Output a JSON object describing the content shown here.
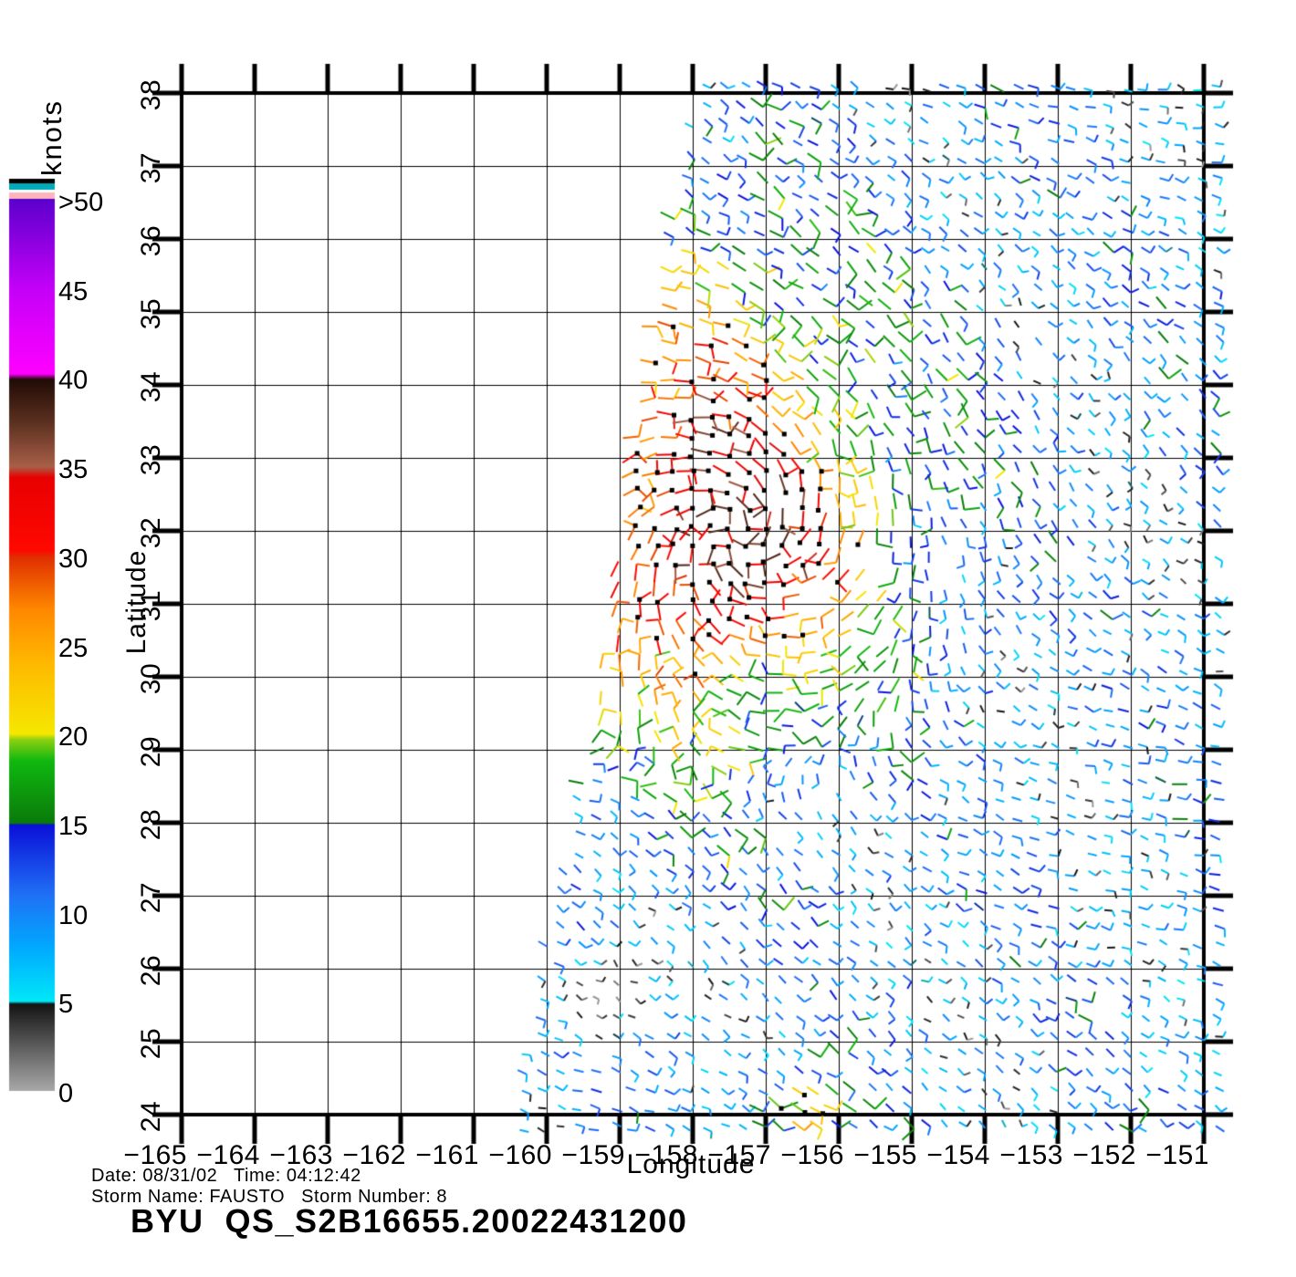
{
  "chart_data": {
    "type": "scatter",
    "subtype": "satellite-wind-vector-field",
    "title": "BYU  QS_S2B16655.20022431200",
    "footer_lines": [
      "Date: 08/31/02   Time: 04:12:42",
      "Storm Name: FAUSTO   Storm Number: 8"
    ],
    "xlabel": "Longitude",
    "ylabel": "Latitude",
    "xlim": [
      -165,
      -151
    ],
    "ylim": [
      24,
      38
    ],
    "grid": true,
    "xticks": {
      "values": [
        -165,
        -164,
        -163,
        -162,
        -161,
        -160,
        -159,
        -158,
        -157,
        -156,
        -155,
        -154,
        -153,
        -152,
        -151
      ],
      "labels": [
        "−165",
        "−164",
        "−163",
        "−162",
        "−161",
        "−160",
        "−159",
        "−158",
        "−157",
        "−156",
        "−155",
        "−154",
        "−153",
        "−152",
        "−151"
      ]
    },
    "yticks": {
      "values": [
        24,
        25,
        26,
        27,
        28,
        29,
        30,
        31,
        32,
        33,
        34,
        35,
        36,
        37,
        38
      ],
      "labels": [
        "24",
        "25",
        "26",
        "27",
        "28",
        "29",
        "30",
        "31",
        "32",
        "33",
        "34",
        "35",
        "36",
        "37",
        "38"
      ]
    },
    "colorbar": {
      "label": "knots",
      "ticks": [
        {
          "value": 0,
          "label": "0"
        },
        {
          "value": 5,
          "label": "5"
        },
        {
          "value": 10,
          "label": "10"
        },
        {
          "value": 15,
          "label": "15"
        },
        {
          "value": 20,
          "label": "20"
        },
        {
          "value": 25,
          "label": "25"
        },
        {
          "value": 30,
          "label": "30"
        },
        {
          "value": 35,
          "label": "35"
        },
        {
          "value": 40,
          "label": "40"
        },
        {
          "value": 45,
          "label": "45"
        },
        {
          "value": 50,
          "label": ">50"
        }
      ],
      "stops": [
        [
          0,
          "#a8a8a8"
        ],
        [
          4.85,
          "#141414"
        ],
        [
          5,
          "#00e8f8"
        ],
        [
          8,
          "#00aaff"
        ],
        [
          11,
          "#2070f5"
        ],
        [
          14.9,
          "#0a10d8"
        ],
        [
          15,
          "#0a7a0a"
        ],
        [
          18.5,
          "#10b810"
        ],
        [
          19.7,
          "#90d010"
        ],
        [
          20,
          "#f5e800"
        ],
        [
          24,
          "#ffb800"
        ],
        [
          27,
          "#ff8800"
        ],
        [
          29.9,
          "#e03000"
        ],
        [
          30.3,
          "#ff0800"
        ],
        [
          34.4,
          "#e80000"
        ],
        [
          35,
          "#a86048"
        ],
        [
          37.5,
          "#5c3020"
        ],
        [
          39.9,
          "#200c06"
        ],
        [
          40.2,
          "#ff00ff"
        ],
        [
          45,
          "#c400f8"
        ],
        [
          50,
          "#5c00cc"
        ]
      ],
      "over_scale_stripes": [
        "#ffb4be",
        "#ffffff",
        "#00aab8",
        "#000000"
      ]
    },
    "wind_field": {
      "grid_spacing_deg": 0.25,
      "swath_left_edge_lon": {
        "lat24": -160.35,
        "lat38": -157.9
      },
      "swath_right_edge_lon": -150.7,
      "ambient_knots": [
        5,
        16
      ],
      "storm": {
        "name": "FAUSTO",
        "center_lon": -157.4,
        "center_lat": 31.9,
        "peak_knots": 35,
        "rotation": "counterclockwise",
        "high_wind_ridge": {
          "lon_at_lat32": -158.15,
          "lat_extent": [
            29,
            36
          ]
        }
      },
      "calm_region": {
        "center_lon": -159.15,
        "center_lat": 25.55,
        "radius_deg": 0.85,
        "knots": [
          0,
          5
        ]
      },
      "south_gust_patch": {
        "center_lon": -156.45,
        "center_lat": 24.0,
        "peak_knots": 28
      },
      "rain_flag_marker": "black-square"
    }
  }
}
